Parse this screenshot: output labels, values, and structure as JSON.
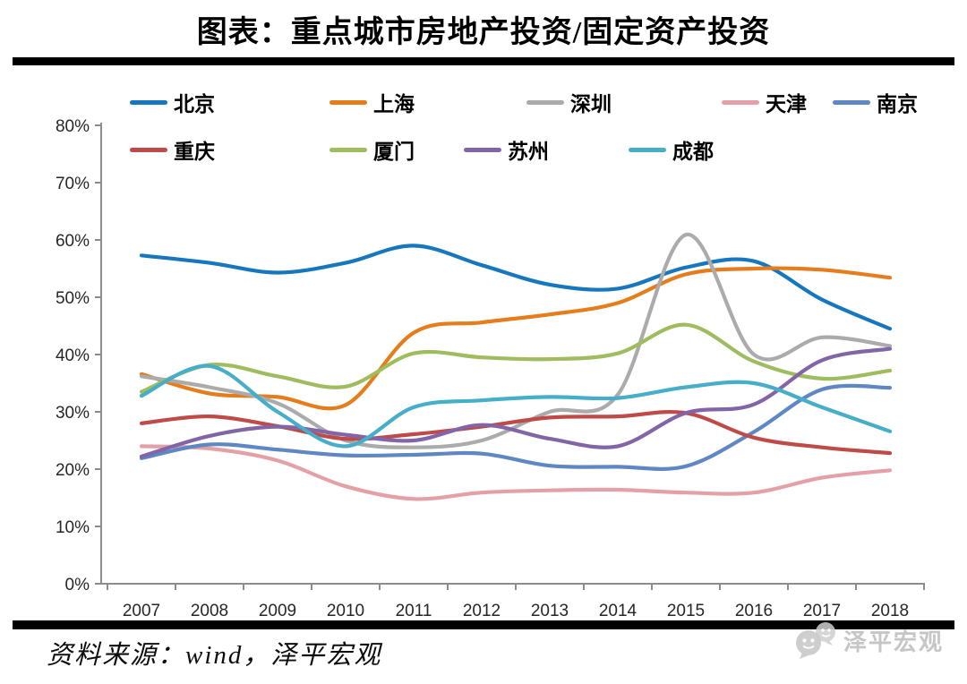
{
  "title": "图表：重点城市房地产投资/固定资产投资",
  "source": "资料来源：wind，泽平宏观",
  "watermark": "泽平宏观",
  "chart_data": {
    "type": "line",
    "title": "图表：重点城市房地产投资/固定资产投资",
    "x": [
      2007,
      2008,
      2009,
      2010,
      2011,
      2012,
      2013,
      2014,
      2015,
      2016,
      2017,
      2018
    ],
    "xticks": [
      "2007",
      "2008",
      "2009",
      "2010",
      "2011",
      "2012",
      "2013",
      "2014",
      "2015",
      "2016",
      "2017",
      "2018"
    ],
    "yticks": [
      "0%",
      "10%",
      "20%",
      "30%",
      "40%",
      "50%",
      "60%",
      "70%",
      "80%"
    ],
    "ylim": [
      0,
      80
    ],
    "ytick_step": 10,
    "unit": "percent",
    "grid": false,
    "legend_position": "top",
    "axis_color": "#8c8c8c",
    "series": [
      {
        "key": "beijing",
        "name": "北京",
        "color": "#1777BE",
        "values": [
          57.3,
          56.0,
          54.3,
          56.0,
          59.0,
          55.6,
          52.2,
          51.5,
          55.2,
          56.3,
          49.6,
          44.5
        ]
      },
      {
        "key": "shanghai",
        "name": "上海",
        "color": "#E57D1C",
        "values": [
          36.6,
          33.2,
          32.6,
          31.2,
          43.8,
          45.6,
          47.0,
          49.0,
          54.0,
          55.0,
          54.8,
          53.4
        ]
      },
      {
        "key": "shenzhen",
        "name": "深圳",
        "color": "#ABABAB",
        "values": [
          36.2,
          34.3,
          31.5,
          25.0,
          23.8,
          25.0,
          30.0,
          33.0,
          60.9,
          40.0,
          43.0,
          41.5
        ]
      },
      {
        "key": "tianjin",
        "name": "天津",
        "color": "#E3A0A7",
        "values": [
          24.0,
          23.6,
          21.5,
          17.0,
          14.8,
          15.9,
          16.3,
          16.4,
          15.9,
          15.9,
          18.5,
          19.8
        ]
      },
      {
        "key": "nanjing",
        "name": "南京",
        "color": "#5E87C3",
        "values": [
          21.9,
          24.3,
          23.4,
          22.4,
          22.5,
          22.7,
          20.6,
          20.4,
          20.5,
          26.5,
          33.9,
          34.2
        ]
      },
      {
        "key": "chongqing",
        "name": "重庆",
        "color": "#BE4B48",
        "values": [
          28.0,
          29.2,
          27.5,
          25.3,
          26.1,
          27.4,
          29.0,
          29.2,
          29.8,
          25.5,
          23.8,
          22.8
        ]
      },
      {
        "key": "xiamen",
        "name": "厦门",
        "color": "#9FBC5F",
        "values": [
          33.5,
          38.2,
          36.2,
          34.4,
          40.2,
          39.5,
          39.2,
          40.2,
          45.2,
          38.8,
          35.8,
          37.2
        ]
      },
      {
        "key": "suzhou",
        "name": "苏州",
        "color": "#8265A7",
        "values": [
          22.2,
          25.8,
          27.4,
          26.0,
          25.0,
          27.7,
          25.3,
          24.0,
          29.8,
          31.3,
          39.0,
          41.0
        ]
      },
      {
        "key": "chengdu",
        "name": "成都",
        "color": "#46AEC8",
        "values": [
          32.8,
          38.0,
          30.0,
          24.0,
          30.8,
          32.0,
          32.6,
          32.4,
          34.3,
          35.0,
          30.8,
          26.6
        ]
      }
    ]
  }
}
